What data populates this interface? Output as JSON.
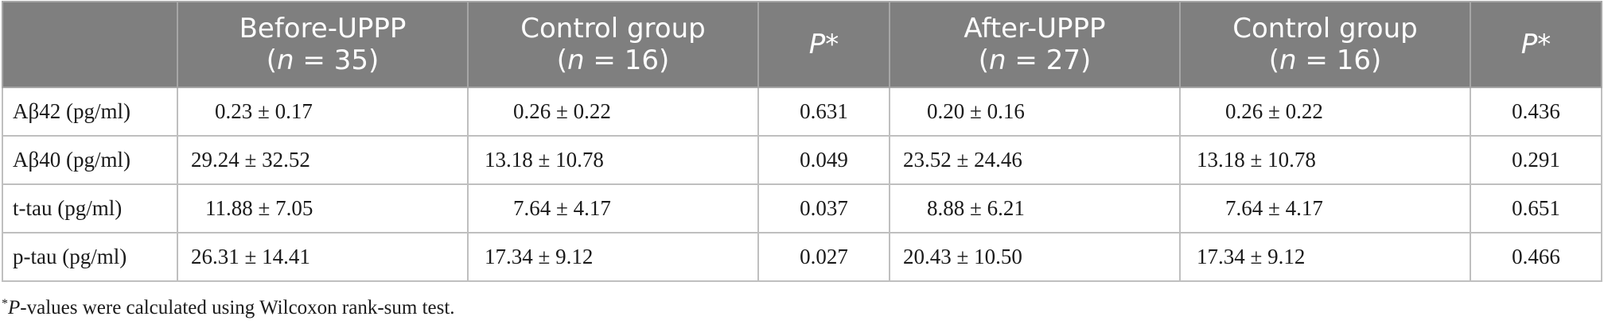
{
  "table": {
    "headers": [
      {
        "line1": "",
        "line2_prefix": "",
        "n": ""
      },
      {
        "line1": "Before-UPPP",
        "line2_prefix": "n",
        "n": " = 35"
      },
      {
        "line1": "Control group",
        "line2_prefix": "n",
        "n": " = 16"
      },
      {
        "line1": "P*",
        "line2_prefix": "",
        "n": ""
      },
      {
        "line1": "After-UPPP",
        "line2_prefix": "n",
        "n": " = 27"
      },
      {
        "line1": "Control group",
        "line2_prefix": "n",
        "n": " = 16"
      },
      {
        "line1": "P*",
        "line2_prefix": "",
        "n": ""
      }
    ],
    "rows": [
      {
        "label": "Aβ42 (pg/ml)",
        "before": "0.23 ± 0.17",
        "control1": "0.26 ± 0.22",
        "p1": "0.631",
        "after": "0.20 ± 0.16",
        "control2": "0.26 ± 0.22",
        "p2": "0.436"
      },
      {
        "label": "Aβ40 (pg/ml)",
        "before": "29.24 ± 32.52",
        "control1": "13.18 ± 10.78",
        "p1": "0.049",
        "after": "23.52 ± 24.46",
        "control2": "13.18 ± 10.78",
        "p2": "0.291"
      },
      {
        "label": "t-tau (pg/ml)",
        "before": "11.88 ± 7.05",
        "control1": "7.64 ± 4.17",
        "p1": "0.037",
        "after": "8.88 ± 6.21",
        "control2": "7.64 ± 4.17",
        "p2": "0.651"
      },
      {
        "label": "p-tau (pg/ml)",
        "before": "26.31 ± 14.41",
        "control1": "17.34 ± 9.12",
        "p1": "0.027",
        "after": "20.43 ± 10.50",
        "control2": "17.34 ± 9.12",
        "p2": "0.466"
      }
    ]
  },
  "footnote": {
    "marker": "*",
    "italic": "P",
    "text": "-values were calculated using Wilcoxon rank-sum test."
  },
  "colors": {
    "header_bg": "#7f7f7f",
    "header_text": "#ffffff",
    "grid": "#bfbfbf"
  }
}
